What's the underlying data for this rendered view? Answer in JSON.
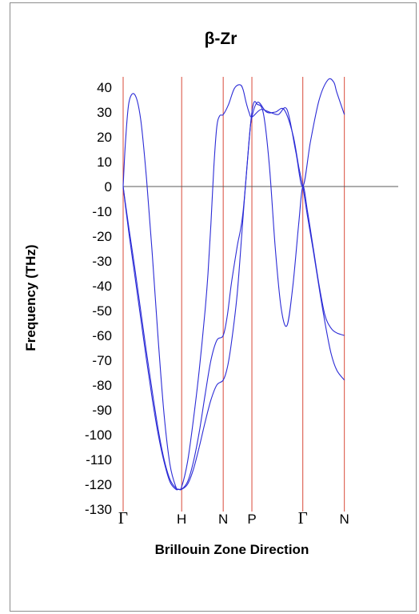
{
  "chart_data": {
    "type": "line",
    "title": "β-Zr",
    "xlabel": "Brillouin Zone Direction",
    "ylabel": "Frequency (THz)",
    "ylim": [
      -130,
      45
    ],
    "yticks": [
      40,
      30,
      20,
      10,
      0,
      -10,
      -20,
      -30,
      -40,
      -50,
      -60,
      -70,
      -80,
      -90,
      -100,
      -110,
      -120,
      -130
    ],
    "kpoints": [
      {
        "label": "Γ",
        "x": 0.0,
        "greek": true
      },
      {
        "label": "H",
        "x": 1.0,
        "greek": false
      },
      {
        "label": "N",
        "x": 1.71,
        "greek": false
      },
      {
        "label": "P",
        "x": 2.2,
        "greek": false
      },
      {
        "label": "Γ",
        "x": 3.07,
        "greek": true
      },
      {
        "label": "N",
        "x": 3.78,
        "greek": false
      }
    ],
    "xlim": [
      0,
      4.7
    ],
    "grid": false,
    "legend": "none",
    "colors": {
      "bands": "#2b2bd6",
      "kpoint_lines": "#d94a3a",
      "zero_line": "#595959"
    },
    "series": [
      {
        "x": [
          0,
          0.04,
          0.1,
          0.2,
          0.3,
          0.4,
          0.5,
          0.6,
          0.7,
          0.8,
          0.9,
          0.95,
          1.0,
          1.1,
          1.2,
          1.3,
          1.4,
          1.5,
          1.6,
          1.71,
          1.78,
          1.85,
          1.95,
          2.05,
          2.2,
          2.3,
          2.4,
          2.5,
          2.6,
          2.7,
          2.8,
          2.9,
          3.0,
          3.07,
          3.15,
          3.25,
          3.35,
          3.45,
          3.55,
          3.65,
          3.78
        ],
        "y": [
          0,
          -7,
          -17,
          -33,
          -50,
          -67,
          -83,
          -98,
          -110,
          -118,
          -121.5,
          -122,
          -122,
          -119,
          -111,
          -99,
          -84,
          -70,
          -62,
          -60,
          -52,
          -39,
          -24,
          -10,
          30,
          33,
          29,
          8,
          -25,
          -49,
          -56,
          -40,
          -15,
          0,
          -10,
          -25,
          -40,
          -52,
          -57,
          -59,
          -60
        ]
      },
      {
        "x": [
          0,
          0.04,
          0.1,
          0.2,
          0.3,
          0.4,
          0.5,
          0.6,
          0.7,
          0.8,
          0.9,
          0.95,
          1.0,
          1.1,
          1.2,
          1.3,
          1.4,
          1.5,
          1.6,
          1.71,
          1.78,
          1.85,
          1.95,
          2.05,
          2.15,
          2.2,
          2.3,
          2.45,
          2.6,
          2.75,
          2.9,
          3.0,
          3.07,
          3.15,
          3.25,
          3.35,
          3.45,
          3.55,
          3.65,
          3.78
        ],
        "y": [
          0,
          -8,
          -19,
          -36,
          -53,
          -70,
          -86,
          -100,
          -111,
          -119,
          -122,
          -122,
          -122,
          -120,
          -114,
          -105,
          -95,
          -86,
          -80,
          -78,
          -73,
          -63,
          -43,
          -12,
          18,
          28,
          34,
          30,
          30,
          31,
          21,
          8,
          0,
          -12,
          -26,
          -41,
          -55,
          -67,
          -74,
          -78
        ]
      },
      {
        "x": [
          0,
          0.04,
          0.1,
          0.2,
          0.3,
          0.4,
          0.5,
          0.6,
          0.7,
          0.8,
          0.9,
          0.95,
          1.0,
          1.1,
          1.2,
          1.3,
          1.4,
          1.45,
          1.5,
          1.55,
          1.6,
          1.65,
          1.71,
          1.8,
          1.9,
          2.0,
          2.05,
          2.1,
          2.15,
          2.2,
          2.35,
          2.5,
          2.65,
          2.8,
          2.95,
          3.07,
          3.2,
          3.35,
          3.5,
          3.6,
          3.65,
          3.78
        ],
        "y": [
          0,
          18,
          34,
          37,
          27,
          3,
          -28,
          -62,
          -92,
          -112,
          -121,
          -122,
          -121,
          -111,
          -94,
          -74,
          -50,
          -35,
          -15,
          8,
          24,
          28.5,
          29,
          33,
          39.5,
          41,
          39,
          34,
          30,
          28,
          31,
          30,
          29,
          31,
          14,
          0,
          18,
          35,
          43,
          42,
          38,
          29
        ]
      }
    ]
  }
}
